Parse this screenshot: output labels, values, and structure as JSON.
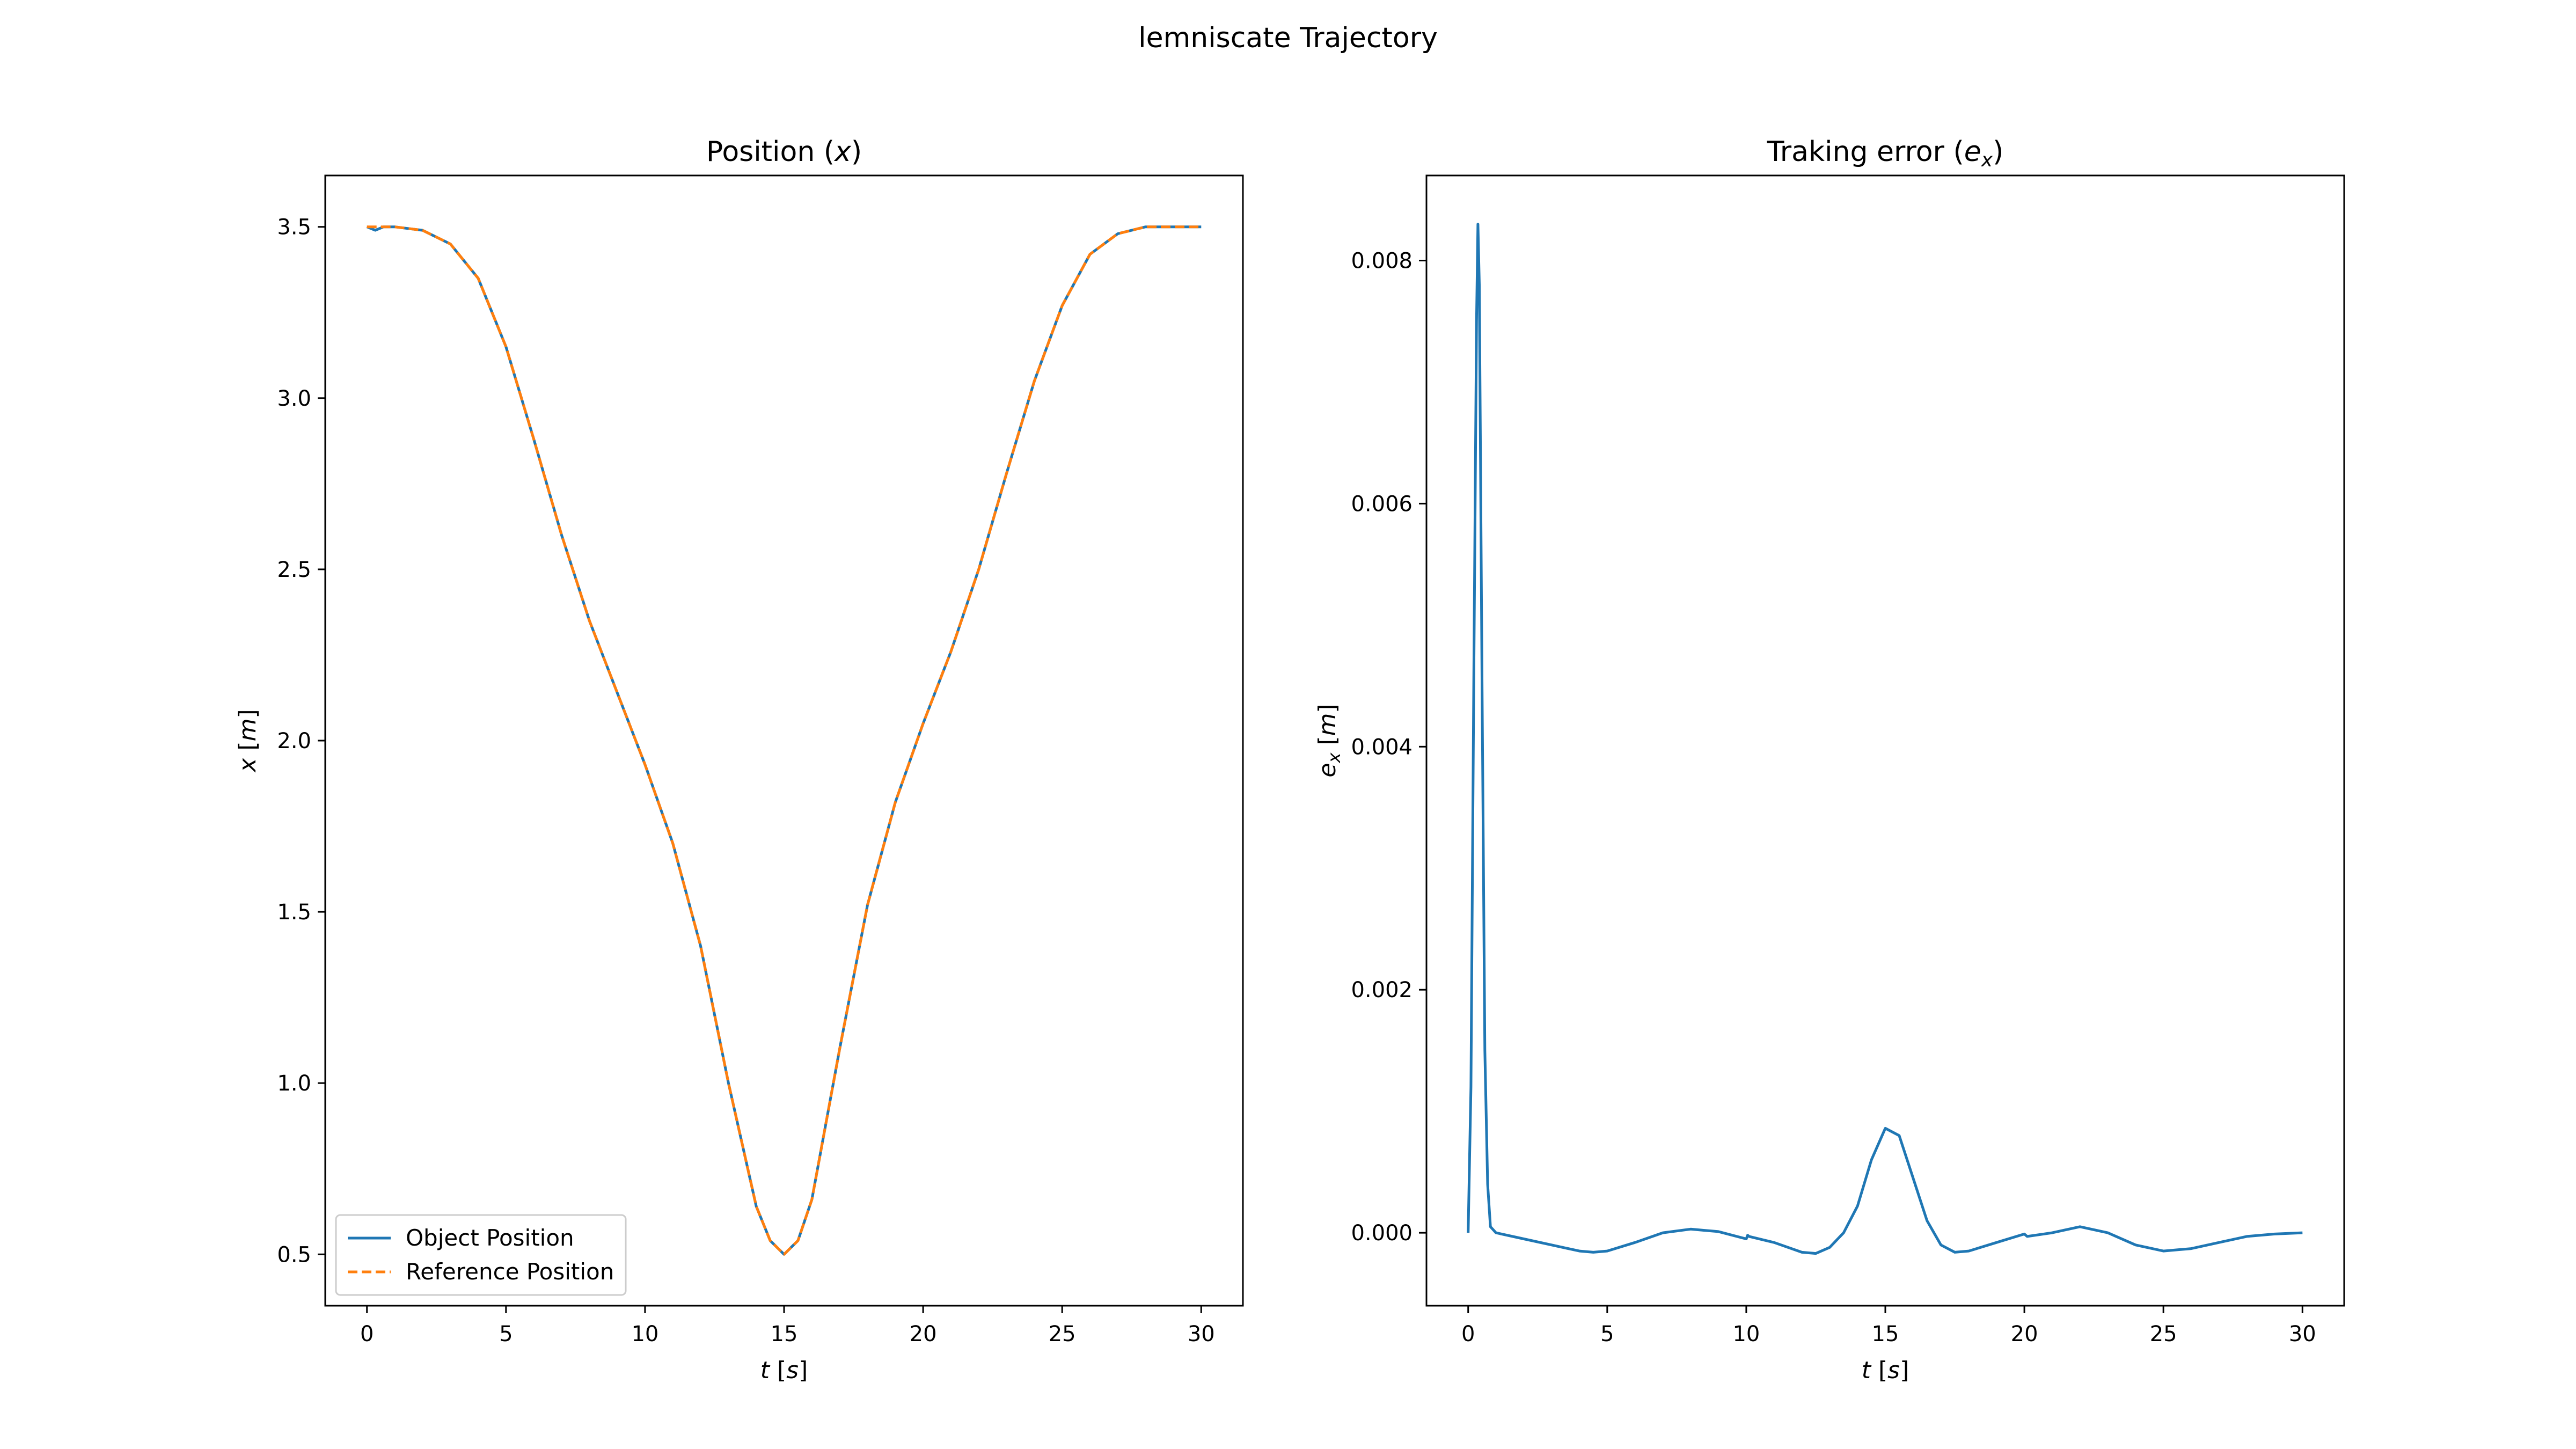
{
  "figure": {
    "suptitle": "lemniscate Trajectory"
  },
  "chart_data": [
    {
      "type": "line",
      "title": "Position (x)",
      "xlabel": "t [s]",
      "ylabel": "x [m]",
      "xlim": [
        -1.5,
        31.5
      ],
      "ylim": [
        0.35,
        3.65
      ],
      "xticks": [
        0,
        5,
        10,
        15,
        20,
        25,
        30
      ],
      "xtick_labels": [
        "0",
        "5",
        "10",
        "15",
        "20",
        "25",
        "30"
      ],
      "yticks": [
        0.5,
        1.0,
        1.5,
        2.0,
        2.5,
        3.0,
        3.5
      ],
      "ytick_labels": [
        "0.5",
        "1.0",
        "1.5",
        "2.0",
        "2.5",
        "3.0",
        "3.5"
      ],
      "grid": false,
      "legend": "lower-left",
      "series": [
        {
          "name": "Object Position",
          "color": "#1f77b4",
          "style": "solid",
          "x": [
            0,
            0.3,
            0.6,
            1,
            2,
            3,
            4,
            5,
            6,
            7,
            8,
            9,
            10,
            11,
            12,
            13,
            14,
            14.5,
            15,
            15.5,
            16,
            17,
            18,
            19,
            20,
            21,
            22,
            23,
            24,
            25,
            26,
            27,
            28,
            29,
            30
          ],
          "y": [
            3.5,
            3.49,
            3.5,
            3.5,
            3.49,
            3.45,
            3.35,
            3.15,
            2.88,
            2.6,
            2.35,
            2.14,
            1.93,
            1.7,
            1.4,
            1.0,
            0.64,
            0.54,
            0.5,
            0.54,
            0.66,
            1.1,
            1.52,
            1.82,
            2.05,
            2.26,
            2.5,
            2.78,
            3.05,
            3.27,
            3.42,
            3.48,
            3.5,
            3.5,
            3.5
          ]
        },
        {
          "name": "Reference Position",
          "color": "#ff7f0e",
          "style": "dashed",
          "x": [
            0,
            1,
            2,
            3,
            4,
            5,
            6,
            7,
            8,
            9,
            10,
            11,
            12,
            13,
            14,
            14.5,
            15,
            15.5,
            16,
            17,
            18,
            19,
            20,
            21,
            22,
            23,
            24,
            25,
            26,
            27,
            28,
            29,
            30
          ],
          "y": [
            3.5,
            3.5,
            3.49,
            3.45,
            3.35,
            3.15,
            2.88,
            2.6,
            2.35,
            2.14,
            1.93,
            1.7,
            1.4,
            1.0,
            0.64,
            0.54,
            0.5,
            0.54,
            0.66,
            1.1,
            1.52,
            1.82,
            2.05,
            2.26,
            2.5,
            2.78,
            3.05,
            3.27,
            3.42,
            3.48,
            3.5,
            3.5,
            3.5
          ]
        }
      ]
    },
    {
      "type": "line",
      "title": "Traking error (e_x)",
      "xlabel": "t [s]",
      "ylabel": "e_x [m]",
      "xlim": [
        -1.5,
        31.5
      ],
      "ylim": [
        -0.0006,
        0.0087
      ],
      "xticks": [
        0,
        5,
        10,
        15,
        20,
        25,
        30
      ],
      "xtick_labels": [
        "0",
        "5",
        "10",
        "15",
        "20",
        "25",
        "30"
      ],
      "yticks": [
        0.0,
        0.002,
        0.004,
        0.006,
        0.008
      ],
      "ytick_labels": [
        "0.000",
        "0.002",
        "0.004",
        "0.006",
        "0.008"
      ],
      "grid": false,
      "series": [
        {
          "color": "#1f77b4",
          "style": "solid",
          "x": [
            0,
            0.1,
            0.2,
            0.3,
            0.35,
            0.4,
            0.5,
            0.6,
            0.7,
            0.8,
            1,
            2,
            3,
            4,
            4.5,
            5,
            6,
            7,
            8,
            9,
            10,
            10.05,
            10.1,
            11,
            12,
            12.5,
            13,
            13.5,
            14,
            14.5,
            15,
            15.5,
            16,
            16.5,
            17,
            17.5,
            18,
            19,
            20,
            20.1,
            21,
            22,
            23,
            24,
            25,
            26,
            27,
            28,
            29,
            30
          ],
          "y": [
            0,
            0.0012,
            0.0045,
            0.0075,
            0.0083,
            0.0078,
            0.0045,
            0.0015,
            0.0004,
            5e-05,
            0.0,
            -5e-05,
            -0.0001,
            -0.00015,
            -0.00016,
            -0.00015,
            -8e-05,
            0.0,
            3e-05,
            1e-05,
            -5e-05,
            -2e-05,
            -3e-05,
            -8e-05,
            -0.00016,
            -0.00017,
            -0.00012,
            0.0,
            0.00022,
            0.0006,
            0.00086,
            0.0008,
            0.00045,
            0.0001,
            -0.0001,
            -0.00016,
            -0.00015,
            -8e-05,
            -1e-05,
            -3e-05,
            0.0,
            5e-05,
            0.0,
            -0.0001,
            -0.00015,
            -0.00013,
            -8e-05,
            -3e-05,
            -1e-05,
            0.0
          ]
        }
      ]
    }
  ]
}
